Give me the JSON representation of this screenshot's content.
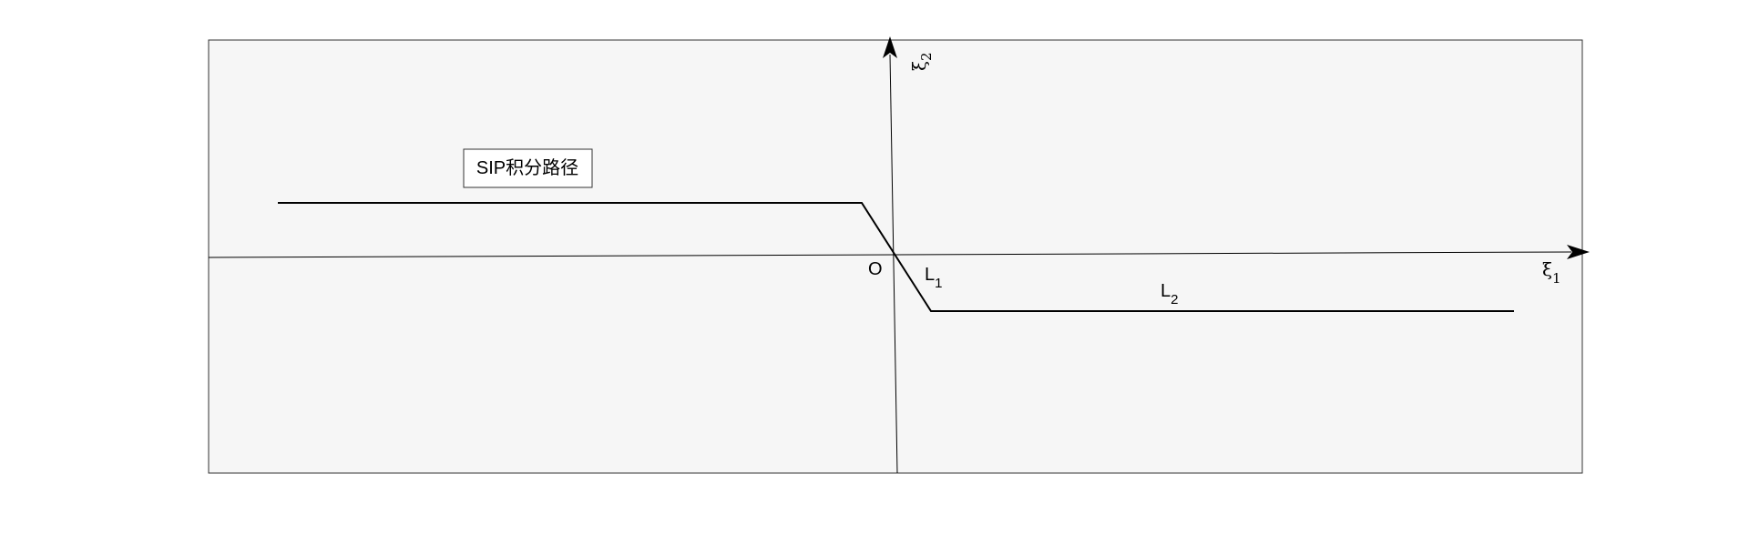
{
  "diagram": {
    "legend_label": "SIP积分路径",
    "origin_label": "O",
    "x_axis": {
      "symbol": "ξ",
      "subscript": "1"
    },
    "y_axis": {
      "symbol": "ξ",
      "subscript": "2"
    },
    "segment_1": {
      "letter": "L",
      "subscript": "1"
    },
    "segment_2": {
      "letter": "L",
      "subscript": "2"
    },
    "colors": {
      "background": "#ffffff",
      "plot_area": "#f6f6f6",
      "frame": "#333333",
      "axes": "#000000",
      "path": "#000000",
      "legend_box": "#ffffff"
    }
  }
}
